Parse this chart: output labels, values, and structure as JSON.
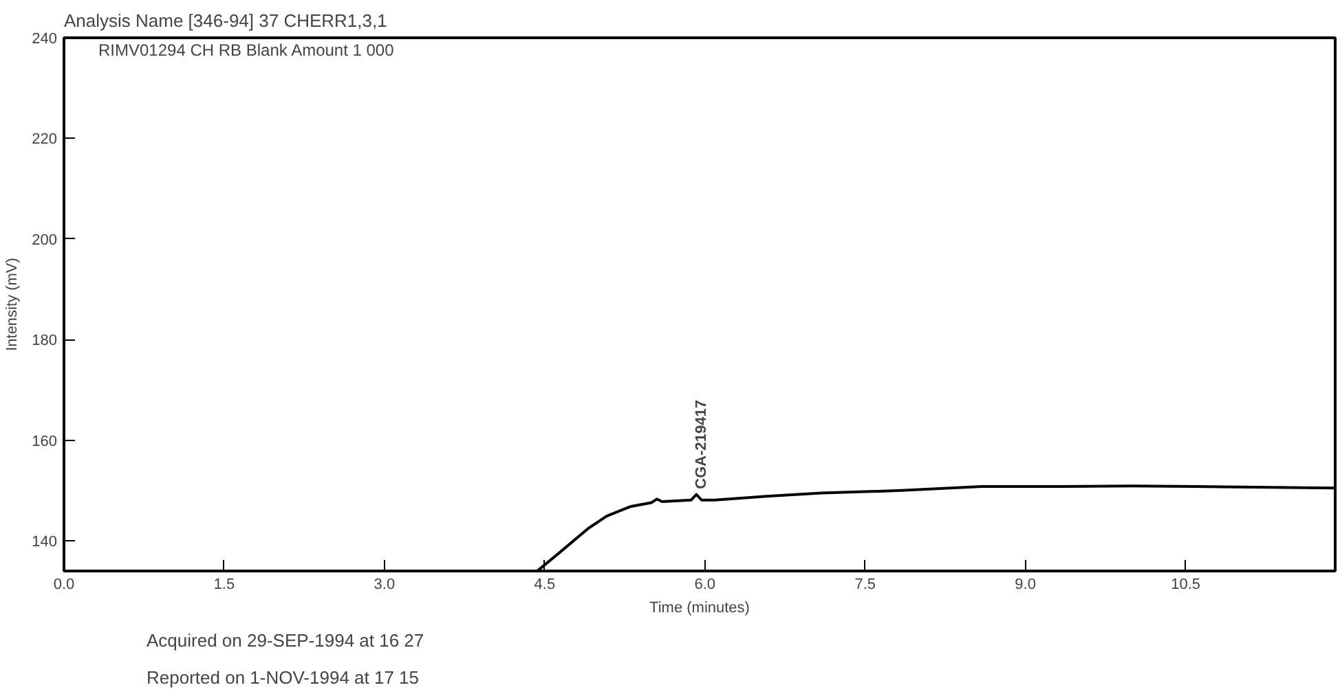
{
  "chart_data": {
    "type": "line",
    "title": "Analysis Name   [346-94] 37 CHERR1,3,1",
    "subtitle": "RIMV01294   CH RB        Blank        Amount    1 000",
    "xlabel": "Time (minutes)",
    "ylabel": "Intensity (mV)",
    "x": [
      4.43,
      4.63,
      4.91,
      5.08,
      5.3,
      5.5,
      5.55,
      5.6,
      5.87,
      5.92,
      5.97,
      6.09,
      6.6,
      7.09,
      7.84,
      8.59,
      9.34,
      10.0,
      10.58,
      11.9
    ],
    "series": [
      {
        "color": "#000000",
        "values": [
          134,
          137.5,
          142.5,
          144.9,
          146.8,
          147.6,
          148.3,
          147.8,
          148.1,
          149.2,
          148.1,
          148.1,
          148.9,
          149.5,
          150.0,
          150.8,
          150.8,
          150.9,
          150.8,
          150.5
        ]
      }
    ],
    "annotations": [
      {
        "text": "CGA-219417",
        "x": 5.92,
        "y": 149.2
      },
      "Acquired on 29-SEP-1994 at 16 27",
      "Reported on  1-NOV-1994 at 17 15"
    ],
    "xlim": [
      0,
      11.9
    ],
    "ylim": [
      134,
      240
    ],
    "xticks": [
      {
        "value": 0,
        "label": "0.0"
      },
      {
        "value": 1.5,
        "label": "1.5"
      },
      {
        "value": 3,
        "label": "3.0"
      },
      {
        "value": 4.5,
        "label": "4.5"
      },
      {
        "value": 6,
        "label": "6.0"
      },
      {
        "value": 7.5,
        "label": "7.5"
      },
      {
        "value": 9,
        "label": "9.0"
      },
      {
        "value": 10.5,
        "label": "10.5"
      }
    ],
    "yticks": [
      140,
      160,
      180,
      200,
      220,
      240
    ],
    "grid": false,
    "marker": "none",
    "line_style": "solid"
  }
}
